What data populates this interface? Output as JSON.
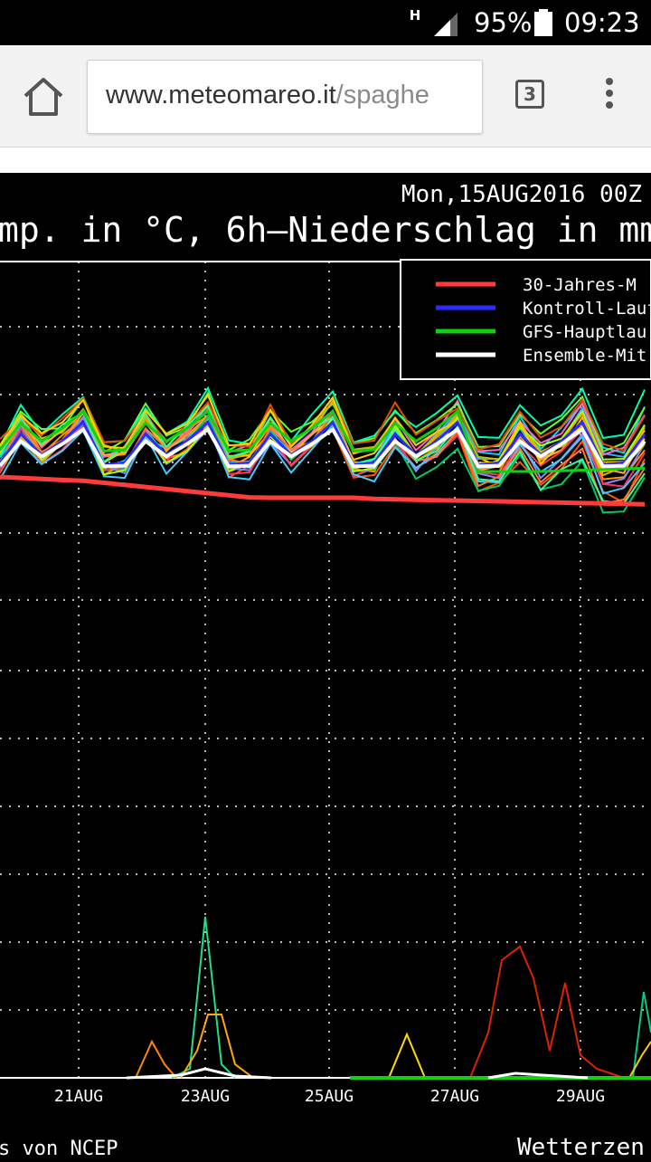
{
  "status_bar": {
    "network": "H",
    "battery": "95%",
    "time": "09:23"
  },
  "browser": {
    "url_host": "www.meteomareo.it",
    "url_path": "/spaghe",
    "tab_count": "3"
  },
  "chart": {
    "date_label": "Mon,15AUG2016 00Z",
    "title": "mp. in °C, 6h–Niederschlag in mm",
    "legend": [
      {
        "label": "30-Jahres-M",
        "color": "#ff3b3b"
      },
      {
        "label": "Kontroll-Lauf",
        "color": "#2b2bff"
      },
      {
        "label": "GFS-Hauptlau",
        "color": "#10d010"
      },
      {
        "label": "Ensemble-Mit",
        "color": "#ffffff"
      }
    ],
    "x_ticks": [
      "21AUG",
      "23AUG",
      "25AUG",
      "27AUG",
      "29AUG"
    ],
    "footer_left": "s von NCEP",
    "footer_right": "Wetterzen"
  },
  "chart_data": {
    "type": "line",
    "title": "mp. in °C, 6h–Niederschlag in mm",
    "x": [
      "21AUG",
      "23AUG",
      "25AUG",
      "27AUG",
      "29AUG"
    ],
    "series": [
      {
        "name": "30-Jahres-M",
        "color": "#ff3b3b"
      },
      {
        "name": "Kontroll-Lauf",
        "color": "#2b2bff"
      },
      {
        "name": "GFS-Hauptlau",
        "color": "#10d010"
      },
      {
        "name": "Ensemble-Mit",
        "color": "#ffffff"
      }
    ],
    "grid": true,
    "legend_position": "top-right"
  }
}
